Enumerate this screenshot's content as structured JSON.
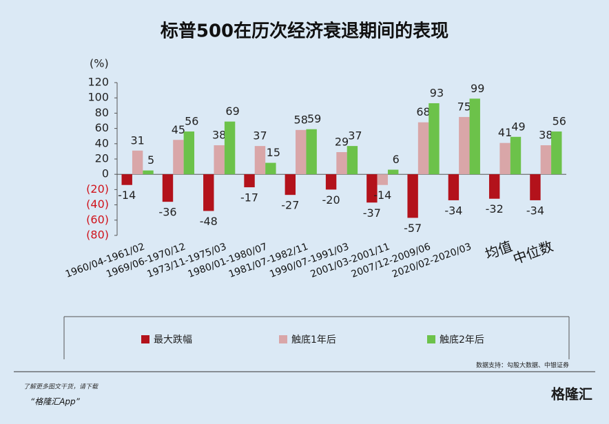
{
  "chart_data": {
    "type": "bar",
    "title": "标普500在历次经济衰退期间的表现",
    "y_label": "(%)",
    "categories": [
      "1960/04-1961/02",
      "1969/06-1970/12",
      "1973/11-1975/03",
      "1980/01-1980/07",
      "1981/07-1982/11",
      "1990/07-1991/03",
      "2001/03-2001/11",
      "2007/12-2009/06",
      "2020/02-2020/03",
      "均值",
      "中位数"
    ],
    "series": [
      {
        "name": "最大跌幅",
        "color": "#b3121b",
        "values": [
          -14,
          -36,
          -48,
          -17,
          -27,
          -20,
          -37,
          -57,
          -34,
          -32,
          -34
        ]
      },
      {
        "name": "触底1年后",
        "color": "#d9a6a8",
        "values": [
          31,
          45,
          38,
          37,
          58,
          29,
          -14,
          68,
          75,
          41,
          38
        ]
      },
      {
        "name": "触底2年后",
        "color": "#6cc24a",
        "values": [
          5,
          56,
          69,
          15,
          59,
          37,
          6,
          93,
          99,
          49,
          56
        ]
      }
    ],
    "ylim": [
      -80,
      120
    ],
    "yticks": [
      {
        "value": -80,
        "label": "(80)"
      },
      {
        "value": -60,
        "label": "(60)"
      },
      {
        "value": -40,
        "label": "(40)"
      },
      {
        "value": -20,
        "label": "(20)"
      },
      0,
      20,
      40,
      60,
      80,
      100,
      120
    ],
    "source": "数据支持：勾股大数据、中银证券",
    "promo_line1": "了解更多图文干货，请下载",
    "promo_line2": "“格隆汇App”",
    "logo": "格隆汇"
  }
}
